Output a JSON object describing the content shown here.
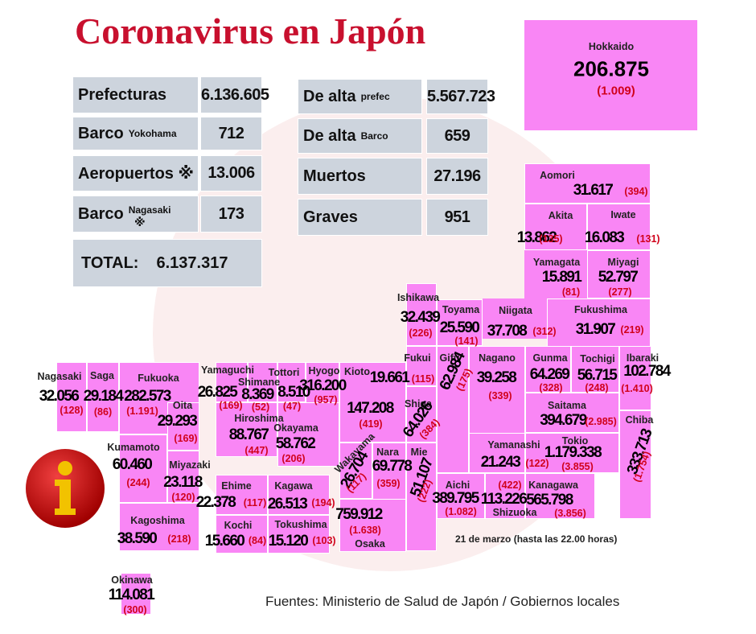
{
  "title": "Coronavirus en Japón",
  "summary": [
    {
      "label": "Prefecturas",
      "value": "6.136.605"
    },
    {
      "label": "Barco",
      "sub": "Yokohama",
      "value": "712"
    },
    {
      "label": "Aeropuertos ※",
      "value": "13.006"
    },
    {
      "label": "Barco",
      "sub": "Nagasaki",
      "mark": "※",
      "value": "173"
    },
    {
      "label": "De alta",
      "sub": "prefec",
      "value": "5.567.723"
    },
    {
      "label": "De alta",
      "sub": "Barco",
      "value": "659"
    },
    {
      "label": "Muertos",
      "value": "27.196"
    },
    {
      "label": "Graves",
      "value": "951"
    }
  ],
  "total": {
    "label": "TOTAL:",
    "value": "6.137.317"
  },
  "prefectures": [
    {
      "name": "Hokkaido",
      "cases": "206.875",
      "deaths": "(1.009)"
    },
    {
      "name": "Aomori",
      "cases": "31.617",
      "deaths": "(394)"
    },
    {
      "name": "Akita",
      "cases": "13.862",
      "deaths": "(135)"
    },
    {
      "name": "Iwate",
      "cases": "16.083",
      "deaths": "(131)"
    },
    {
      "name": "Yamagata",
      "cases": "15.891",
      "deaths": "(81)"
    },
    {
      "name": "Miyagi",
      "cases": "52.797",
      "deaths": "(277)"
    },
    {
      "name": "Niigata",
      "cases": "37.708",
      "deaths": "(312)"
    },
    {
      "name": "Fukushima",
      "cases": "31.907",
      "deaths": "(219)"
    },
    {
      "name": "Ishikawa",
      "cases": "32.439",
      "deaths": "(226)"
    },
    {
      "name": "Toyama",
      "cases": "25.590",
      "deaths": "(141)"
    },
    {
      "name": "Fukui",
      "cases": "19.661",
      "deaths": "(115)"
    },
    {
      "name": "Gifu",
      "cases": "62.984",
      "deaths": "(175)"
    },
    {
      "name": "Nagano",
      "cases": "39.258",
      "deaths": "(339)"
    },
    {
      "name": "Gunma",
      "cases": "64.269",
      "deaths": "(328)"
    },
    {
      "name": "Tochigi",
      "cases": "56.715",
      "deaths": "(248)"
    },
    {
      "name": "Ibaraki",
      "cases": "102.784",
      "deaths": "(1.410)"
    },
    {
      "name": "Saitama",
      "cases": "394.679",
      "deaths": "(2.985)"
    },
    {
      "name": "Chiba",
      "cases": "333.713",
      "deaths": "(1.754)"
    },
    {
      "name": "Tokio",
      "cases": "1.179.338",
      "deaths": "(3.855)"
    },
    {
      "name": "Yamanashi",
      "cases": "21.243",
      "deaths": "(122)"
    },
    {
      "name": "Kanagawa",
      "cases": "565.798",
      "deaths": "(3.856)"
    },
    {
      "name": "Shizuoka",
      "cases": "113.226",
      "deaths": "(422)"
    },
    {
      "name": "Aichi",
      "cases": "389.795",
      "deaths": "(1.082)"
    },
    {
      "name": "Mie",
      "cases": "51.107",
      "deaths": "(222)"
    },
    {
      "name": "Nara",
      "cases": "69.778",
      "deaths": "(359)"
    },
    {
      "name": "Osaka",
      "cases": "759.912",
      "deaths": "(1.638)"
    },
    {
      "name": "Wakayama",
      "cases": "26.704",
      "deaths": "(117)"
    },
    {
      "name": "Kioto",
      "cases": "147.208",
      "deaths": "(419)"
    },
    {
      "name": "Shiga",
      "cases": "64.026",
      "deaths": "(384)"
    },
    {
      "name": "Hyogo",
      "cases": "316.200",
      "deaths": "(957)"
    },
    {
      "name": "Tottori",
      "cases": "8.510",
      "deaths": "(47)"
    },
    {
      "name": "Shimane",
      "cases": "8.369",
      "deaths": "(52)"
    },
    {
      "name": "Yamaguchi",
      "cases": "26.825",
      "deaths": "(169)"
    },
    {
      "name": "Hiroshima",
      "cases": "88.767",
      "deaths": "(447)"
    },
    {
      "name": "Okayama",
      "cases": "58.762",
      "deaths": "(206)"
    },
    {
      "name": "Ehime",
      "cases": "22.378",
      "deaths": "(117)"
    },
    {
      "name": "Kagawa",
      "cases": "26.513",
      "deaths": "(194)"
    },
    {
      "name": "Kochi",
      "cases": "15.660",
      "deaths": "(84)"
    },
    {
      "name": "Tokushima",
      "cases": "15.120",
      "deaths": "(103)"
    },
    {
      "name": "Nagasaki",
      "cases": "32.056",
      "deaths": "(128)"
    },
    {
      "name": "Saga",
      "cases": "29.184",
      "deaths": "(86)"
    },
    {
      "name": "Fukuoka",
      "cases": "282.573",
      "deaths": "(1.191)"
    },
    {
      "name": "Oita",
      "cases": "29.293",
      "deaths": "(169)"
    },
    {
      "name": "Kumamoto",
      "cases": "60.460",
      "deaths": "(244)"
    },
    {
      "name": "Miyazaki",
      "cases": "23.118",
      "deaths": "(120)"
    },
    {
      "name": "Kagoshima",
      "cases": "38.590",
      "deaths": "(218)"
    },
    {
      "name": "Okinawa",
      "cases": "114.081",
      "deaths": "(300)"
    }
  ],
  "note": "21 de marzo  (hasta las  22.00 horas)",
  "source": "Fuentes: Ministerio de Salud de Japón / Gobiernos locales"
}
